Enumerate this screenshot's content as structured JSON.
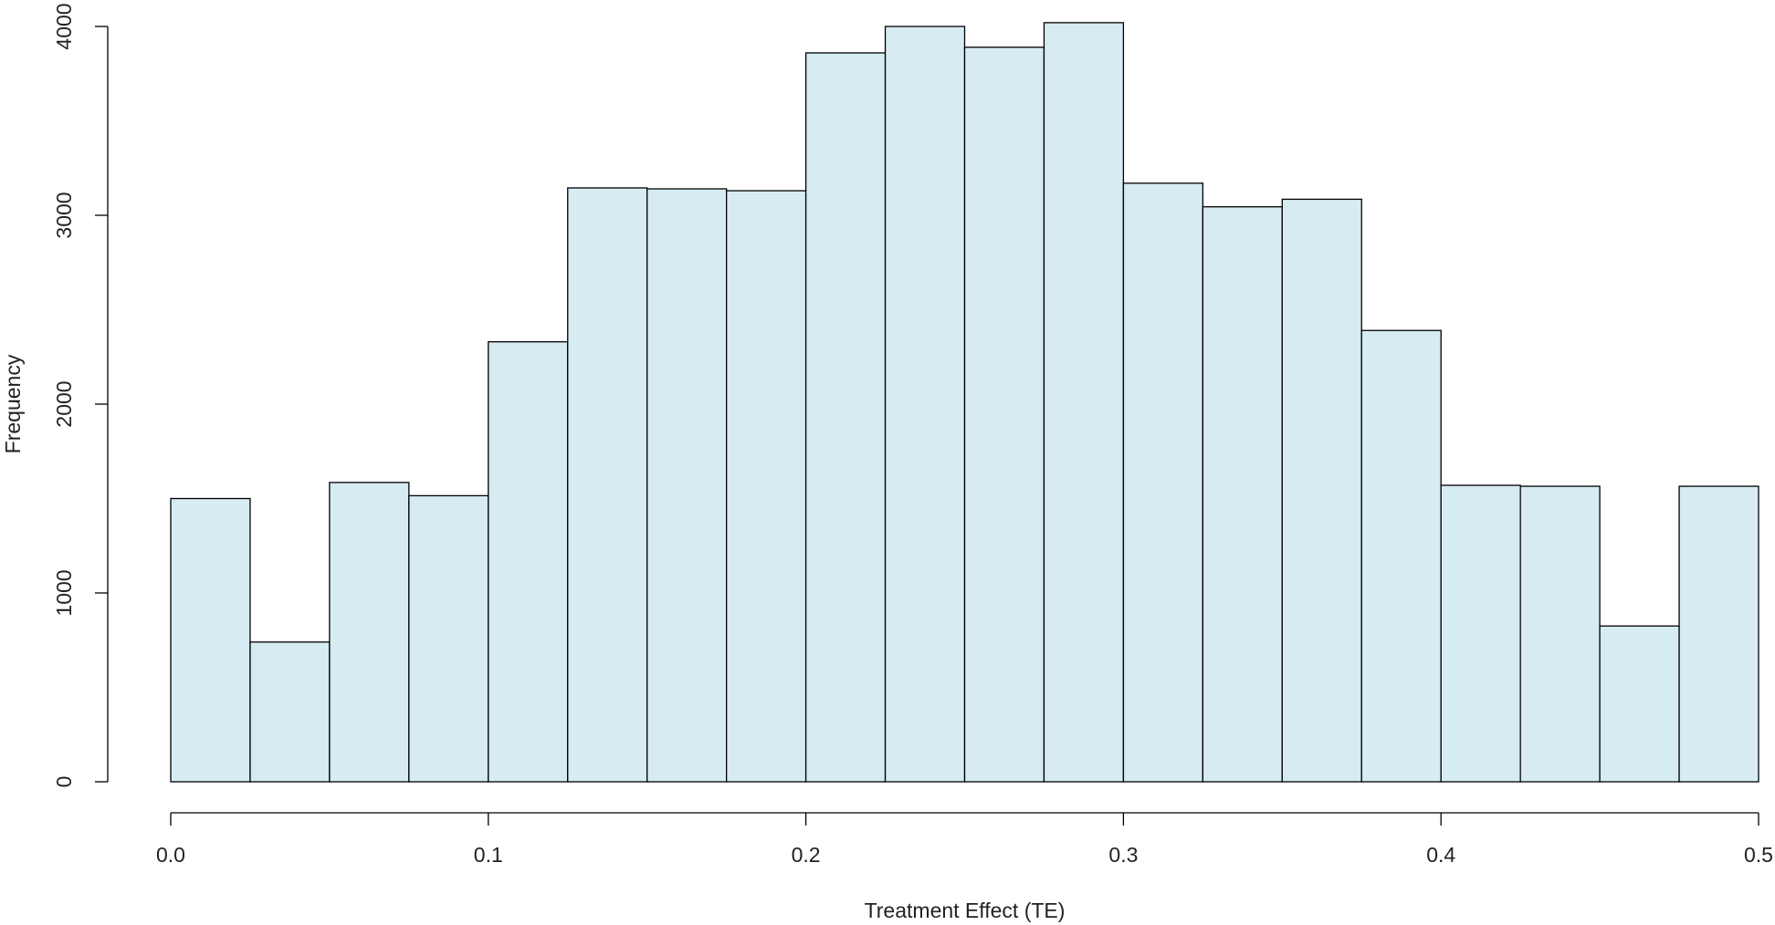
{
  "chart_data": {
    "type": "bar",
    "subtype": "histogram",
    "title": "",
    "xlabel": "Treatment Effect (TE)",
    "ylabel": "Frequency",
    "bin_edges": [
      0.0,
      0.025,
      0.05,
      0.075,
      0.1,
      0.125,
      0.15,
      0.175,
      0.2,
      0.225,
      0.25,
      0.275,
      0.3,
      0.325,
      0.35,
      0.375,
      0.4,
      0.425,
      0.45,
      0.475,
      0.5
    ],
    "values": [
      1500,
      740,
      1585,
      1515,
      2330,
      3145,
      3140,
      3130,
      3860,
      4000,
      3890,
      4020,
      3170,
      3045,
      3085,
      2390,
      1570,
      1565,
      825,
      1565
    ],
    "xlim": [
      0.0,
      0.5
    ],
    "ylim": [
      0,
      4000
    ],
    "x_ticks": [
      "0.0",
      "0.1",
      "0.2",
      "0.3",
      "0.4",
      "0.5"
    ],
    "y_ticks": [
      "0",
      "1000",
      "2000",
      "3000",
      "4000"
    ],
    "bar_color": "#d7ebf2",
    "edge_color": "#000000",
    "grid": false,
    "legend": "none"
  }
}
